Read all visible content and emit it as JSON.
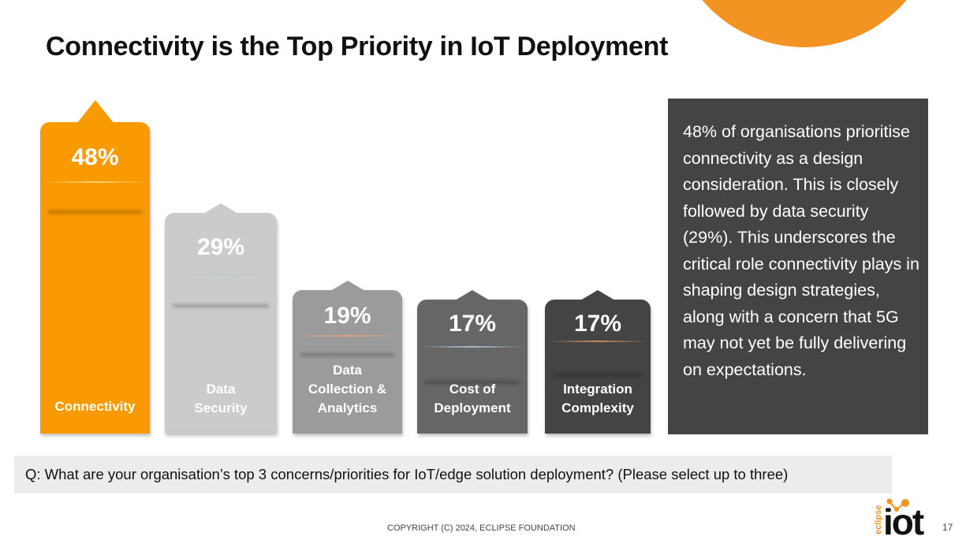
{
  "slide": {
    "title": "Connectivity is the Top Priority in IoT Deployment",
    "description": "48% of organisations prioritise connectivity as a design consideration. This is closely followed by data security (29%). This underscores the critical role connectivity plays in shaping design strategies, along with a concern that 5G may not yet be fully delivering on expectations.",
    "question": "Q: What are your organisation’s top 3 concerns/priorities for IoT/edge solution deployment? (Please select up to three)",
    "copyright": "COPYRIGHT (C) 2024, ECLIPSE FOUNDATION",
    "page_number": "17",
    "logo_text": "eclipse iot",
    "accent_color": "#F39322"
  },
  "chart_data": {
    "type": "bar",
    "categories": [
      "Connectivity",
      "Data Security",
      "Data Collection & Analytics",
      "Cost of Deployment",
      "Integration Complexity"
    ],
    "values": [
      48,
      29,
      19,
      17,
      17
    ],
    "value_labels": [
      "48%",
      "29%",
      "19%",
      "17%",
      "17%"
    ],
    "label_lines": [
      [
        "Connectivity"
      ],
      [
        "Data",
        "Security"
      ],
      [
        "Data",
        "Collection &",
        "Analytics"
      ],
      [
        "Cost of",
        "Deployment"
      ],
      [
        "Integration",
        "Complexity"
      ]
    ],
    "colors": [
      "#F99A00",
      "#CBCBCB",
      "#9B9B9B",
      "#666666",
      "#444444"
    ],
    "unit": "%",
    "grid": false
  }
}
